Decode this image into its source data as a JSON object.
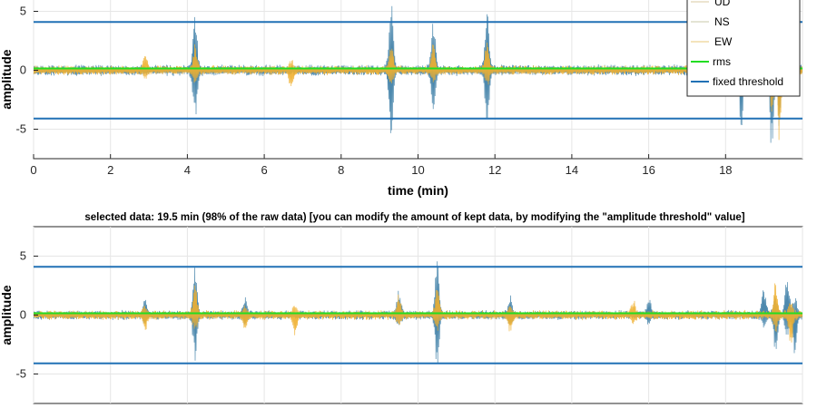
{
  "chart_data": [
    {
      "type": "line",
      "title": "",
      "xlabel": "time (min)",
      "ylabel": "amplitude",
      "xlim": [
        0,
        20
      ],
      "ylim": [
        -7.5,
        7.5
      ],
      "xticks": [
        "0",
        "2",
        "4",
        "6",
        "8",
        "10",
        "12",
        "14",
        "16",
        "18"
      ],
      "yticks": [
        "5",
        "0",
        "-5"
      ],
      "grid": true,
      "legend_position": "top-right",
      "legend": [
        {
          "label": "UD",
          "color": "#d9c9a0"
        },
        {
          "label": "NS",
          "color": "#c8c8a8"
        },
        {
          "label": "EW",
          "color": "#e8c878"
        },
        {
          "label": "rms",
          "color": "#22dd22"
        },
        {
          "label": "fixed threshold",
          "color": "#2171b5"
        }
      ],
      "series": [
        {
          "name": "UD",
          "color": "#3a7ca5",
          "baseline_amplitude": 0.35,
          "spikes": [
            {
              "x": 4.2,
              "y": 3.5
            },
            {
              "x": 4.2,
              "y": -2.4
            },
            {
              "x": 9.3,
              "y": 4.6
            },
            {
              "x": 9.3,
              "y": -4.0
            },
            {
              "x": 10.4,
              "y": 3.0
            },
            {
              "x": 10.4,
              "y": -2.5
            },
            {
              "x": 11.8,
              "y": 4.3
            },
            {
              "x": 11.8,
              "y": -2.5
            },
            {
              "x": 18.4,
              "y": -5.0
            },
            {
              "x": 19.2,
              "y": -7.2
            },
            {
              "x": 19.4,
              "y": -4.5
            },
            {
              "x": 19.8,
              "y": 1.8
            }
          ]
        },
        {
          "name": "EW",
          "color": "#f0b030",
          "baseline_amplitude": 0.3,
          "spikes": [
            {
              "x": 2.9,
              "y": 1.3
            },
            {
              "x": 4.2,
              "y": 2.0
            },
            {
              "x": 6.7,
              "y": -1.5
            },
            {
              "x": 9.3,
              "y": 2.4
            },
            {
              "x": 10.4,
              "y": 2.0
            },
            {
              "x": 11.8,
              "y": 2.2
            },
            {
              "x": 19.2,
              "y": -3.5
            },
            {
              "x": 19.4,
              "y": -6.0
            }
          ]
        },
        {
          "name": "rms",
          "color": "#22dd22",
          "values_constant": 0.15
        },
        {
          "name": "fixed threshold",
          "color": "#2171b5",
          "thresholds": [
            4.1,
            -4.1
          ]
        }
      ]
    },
    {
      "type": "line",
      "title": "selected data: 19.5 min (98% of the raw data) [you can modify the amount of kept data, by modifying the \"amplitude threshold\" value]",
      "xlabel": "",
      "ylabel": "amplitude",
      "xlim": [
        0,
        20
      ],
      "ylim": [
        -7.5,
        7.5
      ],
      "yticks": [
        "5",
        "0",
        "-5"
      ],
      "grid": true,
      "series": [
        {
          "name": "UD",
          "color": "#3a7ca5",
          "baseline_amplitude": 0.3,
          "spikes": [
            {
              "x": 2.9,
              "y": 1.2
            },
            {
              "x": 4.2,
              "y": 3.5
            },
            {
              "x": 4.2,
              "y": -2.2
            },
            {
              "x": 5.5,
              "y": 1.3
            },
            {
              "x": 9.5,
              "y": 1.8
            },
            {
              "x": 10.5,
              "y": 3.0
            },
            {
              "x": 10.5,
              "y": -3.0
            },
            {
              "x": 12.4,
              "y": 1.4
            },
            {
              "x": 16.0,
              "y": 1.2
            },
            {
              "x": 19.0,
              "y": 2.0
            },
            {
              "x": 19.3,
              "y": -3.0
            },
            {
              "x": 19.6,
              "y": 3.6
            },
            {
              "x": 19.8,
              "y": -3.0
            }
          ]
        },
        {
          "name": "EW",
          "color": "#f0b030",
          "baseline_amplitude": 0.3,
          "spikes": [
            {
              "x": 2.9,
              "y": -1.2
            },
            {
              "x": 4.2,
              "y": 2.6
            },
            {
              "x": 5.5,
              "y": -1.2
            },
            {
              "x": 6.8,
              "y": -1.6
            },
            {
              "x": 9.5,
              "y": 1.4
            },
            {
              "x": 10.5,
              "y": 2.2
            },
            {
              "x": 12.4,
              "y": -1.2
            },
            {
              "x": 15.6,
              "y": 1.0
            },
            {
              "x": 19.3,
              "y": 2.6
            },
            {
              "x": 19.7,
              "y": -2.4
            }
          ]
        },
        {
          "name": "rms",
          "color": "#22dd22",
          "values_constant": 0.15
        },
        {
          "name": "fixed threshold",
          "color": "#2171b5",
          "thresholds": [
            4.1,
            -4.1
          ]
        }
      ]
    }
  ]
}
